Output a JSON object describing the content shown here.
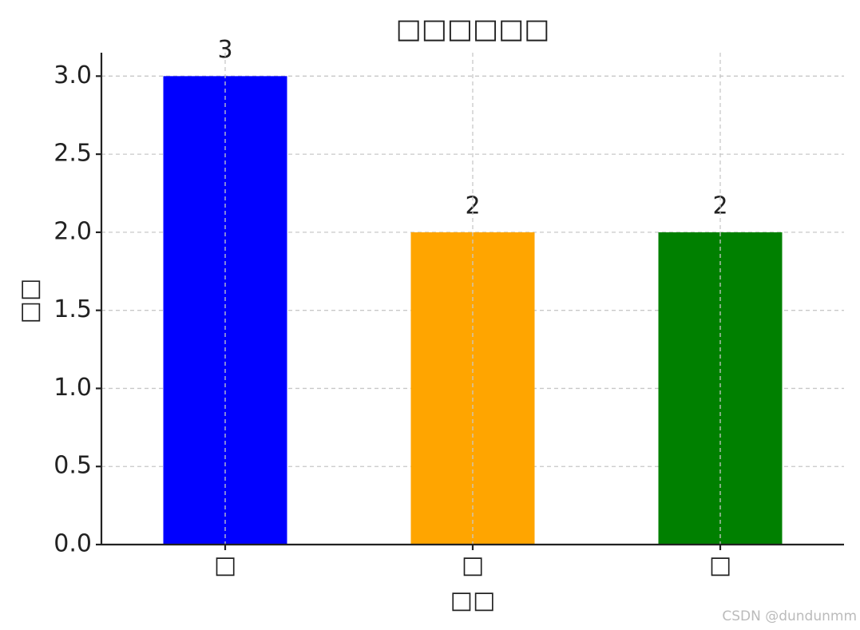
{
  "chart_data": {
    "type": "bar",
    "title": "□□□□□□",
    "x_label": "□□",
    "y_label": "□□",
    "categories": [
      "□",
      "□",
      "□"
    ],
    "values": [
      3,
      2,
      2
    ],
    "colors": [
      "#0000ff",
      "#ffa500",
      "#008000"
    ],
    "ylim": [
      0,
      3.15
    ],
    "yticks": [
      {
        "value": 0,
        "label": "0.0"
      },
      {
        "value": 0.5,
        "label": "0.5"
      },
      {
        "value": 1,
        "label": "1.0"
      },
      {
        "value": 1.5,
        "label": "1.5"
      },
      {
        "value": 2,
        "label": "2.0"
      },
      {
        "value": 2.5,
        "label": "2.5"
      },
      {
        "value": 3,
        "label": "3.0"
      }
    ],
    "grid": true,
    "watermark": "CSDN @dundunmm"
  }
}
